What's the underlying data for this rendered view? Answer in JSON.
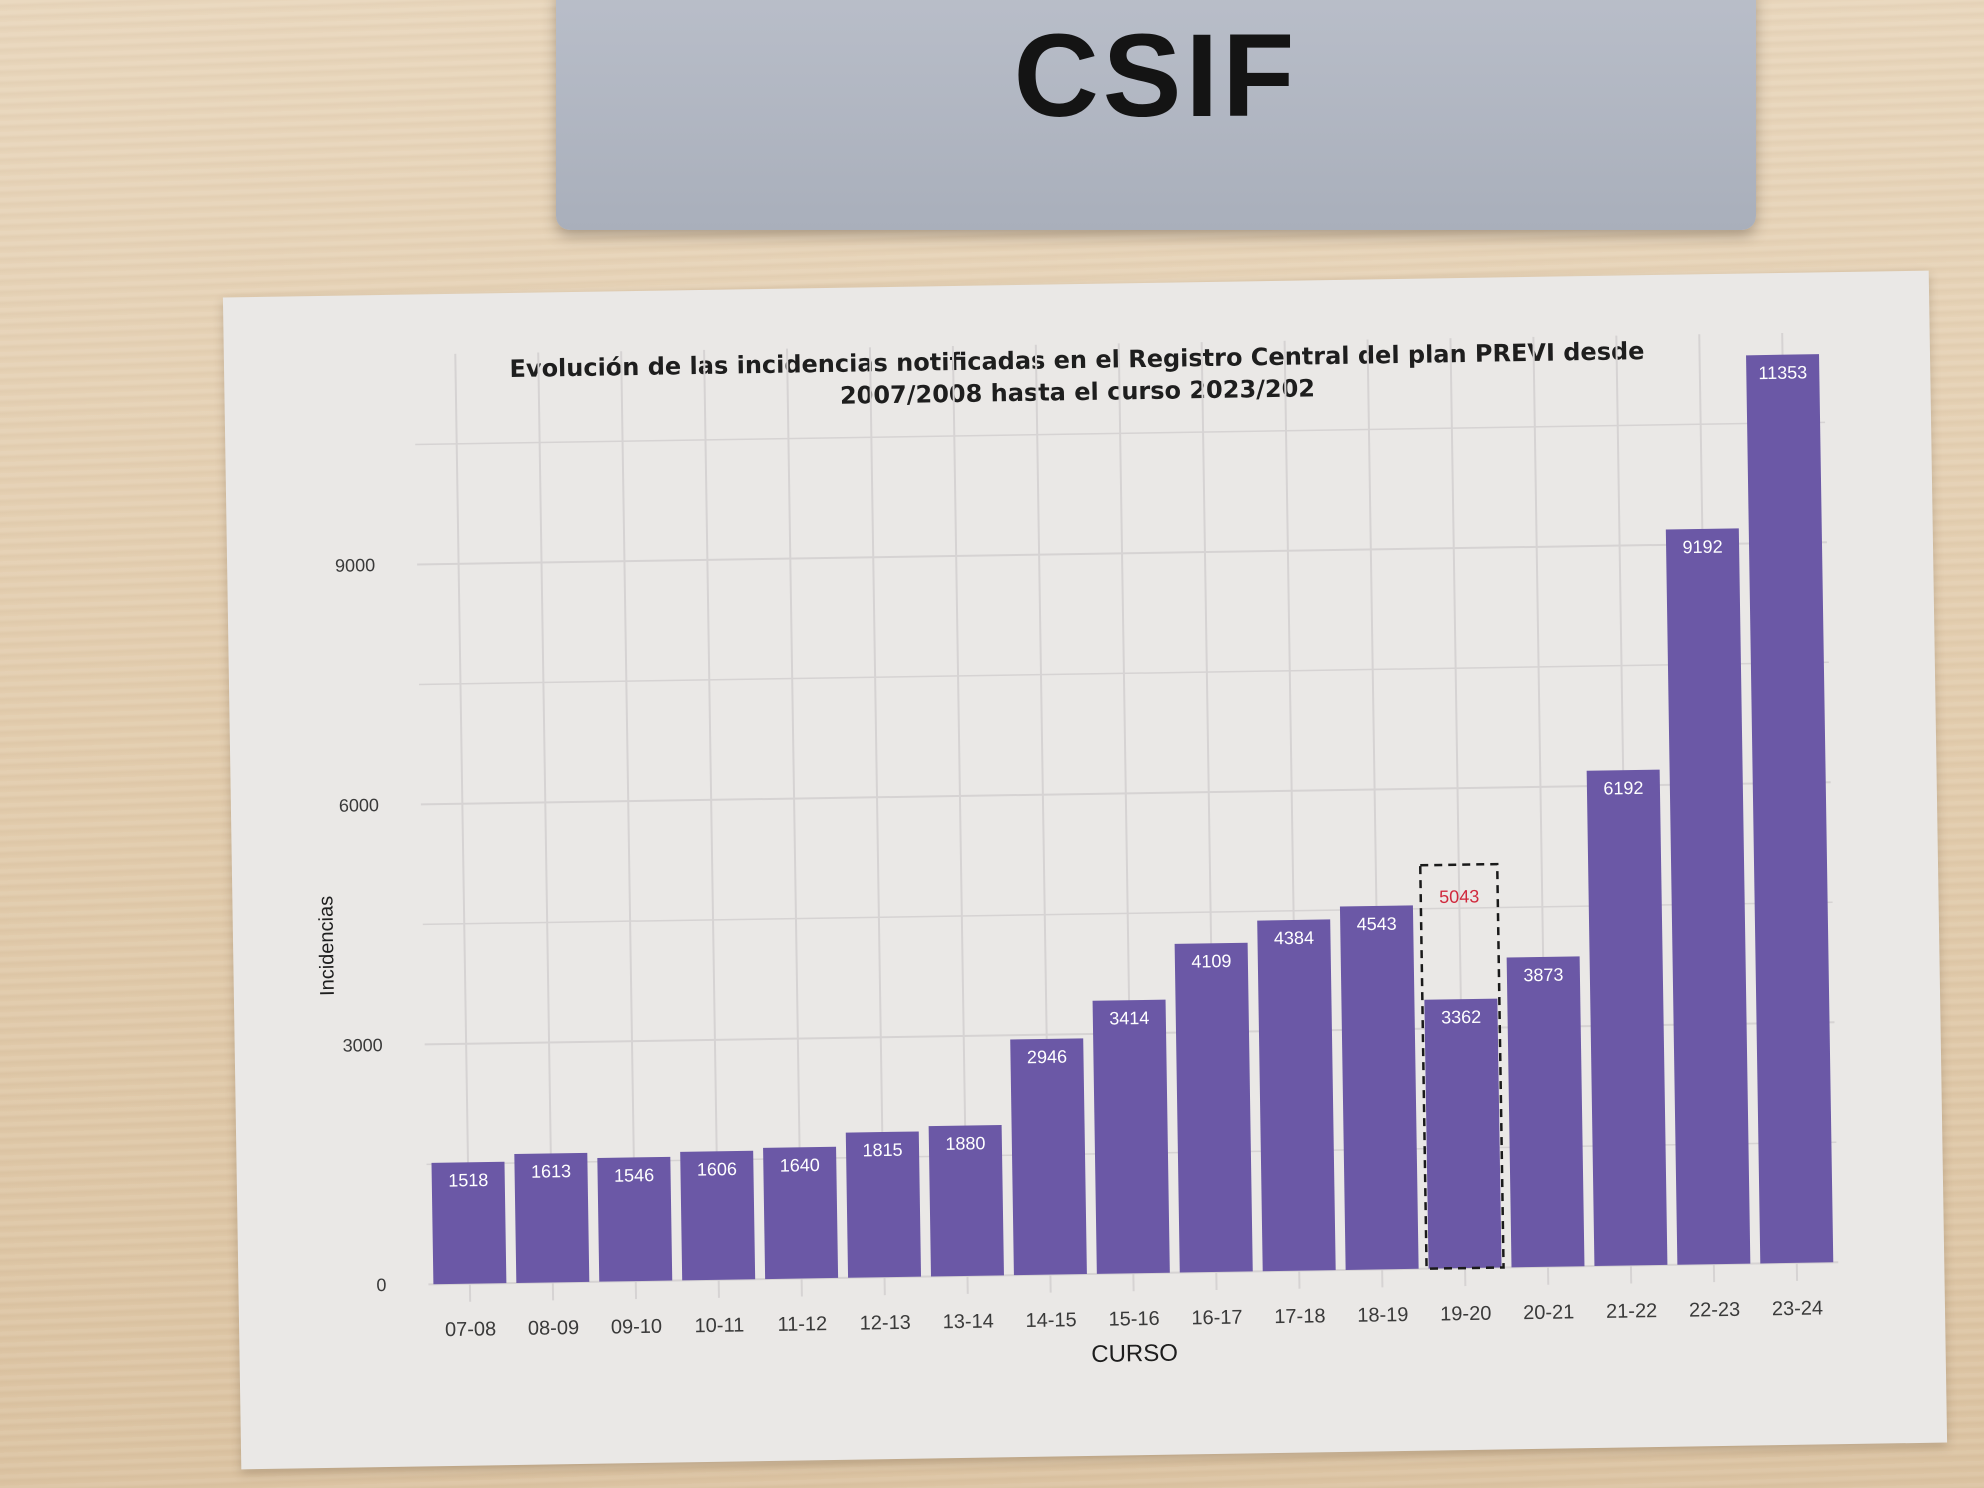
{
  "sign": {
    "text": "CSIF"
  },
  "chart_data": {
    "type": "bar",
    "title": "Evolución de las incidencias notificadas en el Registro Central del plan PREVI desde",
    "subtitle": "2007/2008 hasta el curso 2023/202",
    "xlabel": "CURSO",
    "ylabel": "Incidencias",
    "categories": [
      "07-08",
      "08-09",
      "09-10",
      "10-11",
      "11-12",
      "12-13",
      "13-14",
      "14-15",
      "15-16",
      "16-17",
      "17-18",
      "18-19",
      "19-20",
      "20-21",
      "21-22",
      "22-23",
      "23-24"
    ],
    "series": [
      {
        "values": [
          1518,
          1613,
          1546,
          1606,
          1640,
          1815,
          1880,
          2946,
          3414,
          4109,
          4384,
          4543,
          3362,
          3873,
          6192,
          9192,
          11353
        ]
      }
    ],
    "annotation": {
      "category": "19-20",
      "value": 5043,
      "color": "#d0283c",
      "style": "dashed-box"
    },
    "yticks": [
      0,
      3000,
      6000,
      9000
    ],
    "ylim": [
      0,
      11500
    ],
    "grid": true,
    "legend": "none",
    "colors": {
      "bar": "#6b58a6",
      "bar_label": "#ffffff",
      "grid": "#d6d3d3",
      "axis_text": "#3a3a3a"
    }
  }
}
